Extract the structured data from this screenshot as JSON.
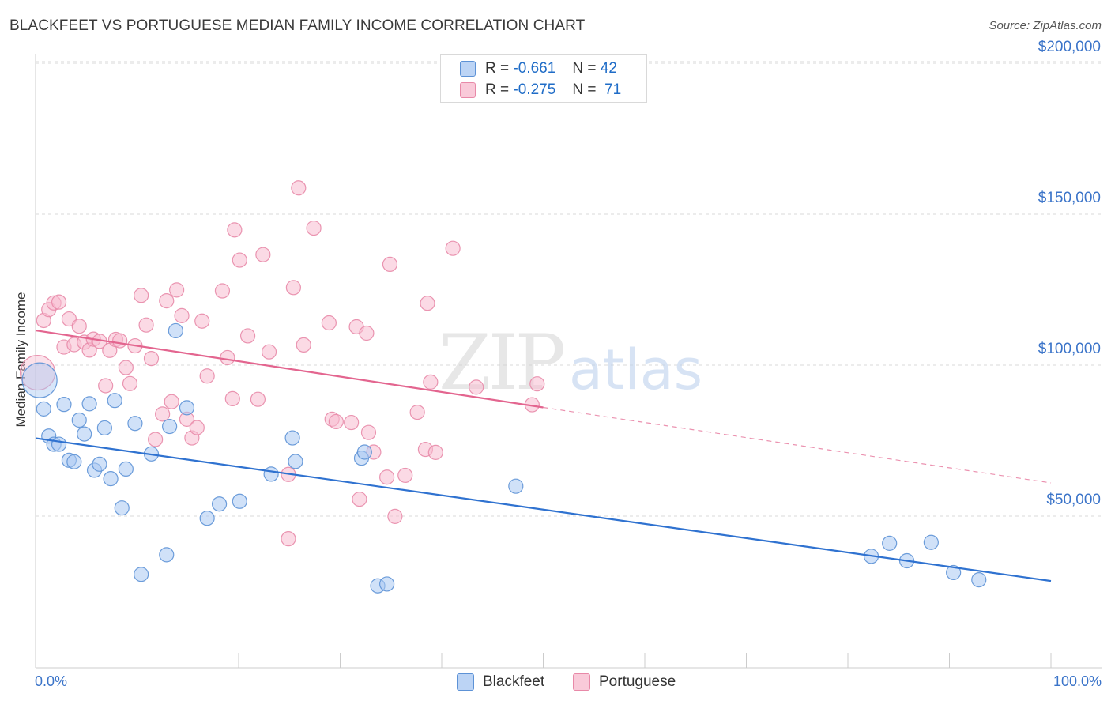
{
  "header": {
    "title": "BLACKFEET VS PORTUGUESE MEDIAN FAMILY INCOME CORRELATION CHART",
    "source": "Source: ZipAtlas.com"
  },
  "watermark": {
    "zip": "ZIP",
    "atlas": "atlas"
  },
  "legend_top": {
    "rows": [
      {
        "r_label": "R =",
        "r_value": "-0.661",
        "n_label": "N =",
        "n_value": "42"
      },
      {
        "r_label": "R =",
        "r_value": "-0.275",
        "n_label": "N =",
        "n_value": "71"
      }
    ]
  },
  "legend_bottom": {
    "items": [
      "Blackfeet",
      "Portuguese"
    ]
  },
  "colors": {
    "blackfeet_fill": "#a9c8f2",
    "blackfeet_stroke": "#5d92d6",
    "blackfeet_line": "#2f72d0",
    "portuguese_fill": "#f7bcd0",
    "portuguese_stroke": "#e889a8",
    "portuguese_line": "#e3658f",
    "grid": "#d9d9d9",
    "tick_label": "#3b74c9"
  },
  "chart_data": {
    "type": "scatter",
    "title": "BLACKFEET VS PORTUGUESE MEDIAN FAMILY INCOME CORRELATION CHART",
    "xlabel": "",
    "ylabel": "Median Family Income",
    "xlim": [
      0,
      100
    ],
    "ylim": [
      0,
      210000
    ],
    "x_tick_labels": [
      "0.0%",
      "100.0%"
    ],
    "y_ticks": [
      50000,
      100000,
      150000,
      200000
    ],
    "y_tick_labels": [
      "$50,000",
      "$100,000",
      "$150,000",
      "$200,000"
    ],
    "grid": true,
    "legend_position": "top-center",
    "series": [
      {
        "name": "Blackfeet",
        "r": -0.661,
        "n": 42,
        "trend": {
          "x": [
            0,
            100
          ],
          "y": [
            75800,
            28500
          ]
        },
        "points": [
          {
            "x": 0.4,
            "y": 95000,
            "big": true
          },
          {
            "x": 0.8,
            "y": 85500
          },
          {
            "x": 1.3,
            "y": 76500
          },
          {
            "x": 1.8,
            "y": 73800
          },
          {
            "x": 2.3,
            "y": 73800
          },
          {
            "x": 2.8,
            "y": 87000
          },
          {
            "x": 3.3,
            "y": 68500
          },
          {
            "x": 3.8,
            "y": 68000
          },
          {
            "x": 4.3,
            "y": 81800
          },
          {
            "x": 4.8,
            "y": 77200
          },
          {
            "x": 5.3,
            "y": 87200
          },
          {
            "x": 5.8,
            "y": 65200
          },
          {
            "x": 6.3,
            "y": 67200
          },
          {
            "x": 6.8,
            "y": 79200
          },
          {
            "x": 7.4,
            "y": 62400
          },
          {
            "x": 7.8,
            "y": 88300
          },
          {
            "x": 8.5,
            "y": 52700
          },
          {
            "x": 8.9,
            "y": 65600
          },
          {
            "x": 9.8,
            "y": 80700
          },
          {
            "x": 10.4,
            "y": 30700
          },
          {
            "x": 11.4,
            "y": 70600
          },
          {
            "x": 12.9,
            "y": 37200
          },
          {
            "x": 13.2,
            "y": 79700
          },
          {
            "x": 13.8,
            "y": 111400
          },
          {
            "x": 14.9,
            "y": 85900
          },
          {
            "x": 16.9,
            "y": 49300
          },
          {
            "x": 18.1,
            "y": 54000
          },
          {
            "x": 20.1,
            "y": 54900
          },
          {
            "x": 23.2,
            "y": 63900
          },
          {
            "x": 25.3,
            "y": 75900
          },
          {
            "x": 25.6,
            "y": 68100
          },
          {
            "x": 32.1,
            "y": 69200
          },
          {
            "x": 32.4,
            "y": 71200
          },
          {
            "x": 33.7,
            "y": 26900
          },
          {
            "x": 34.6,
            "y": 27500
          },
          {
            "x": 47.3,
            "y": 59900
          },
          {
            "x": 82.3,
            "y": 36700
          },
          {
            "x": 84.1,
            "y": 41000
          },
          {
            "x": 85.8,
            "y": 35200
          },
          {
            "x": 88.2,
            "y": 41300
          },
          {
            "x": 90.4,
            "y": 31300
          },
          {
            "x": 92.9,
            "y": 28900
          }
        ]
      },
      {
        "name": "Portuguese",
        "r": -0.275,
        "n": 71,
        "trend": {
          "x": [
            0,
            50
          ],
          "y": [
            111500,
            86000
          ]
        },
        "trend_extension": {
          "x": [
            50,
            100
          ],
          "y": [
            86000,
            61000
          ]
        },
        "points": [
          {
            "x": 0.2,
            "y": 97500,
            "big": true
          },
          {
            "x": 0.8,
            "y": 114800
          },
          {
            "x": 1.3,
            "y": 118400
          },
          {
            "x": 1.8,
            "y": 120600
          },
          {
            "x": 2.3,
            "y": 120900
          },
          {
            "x": 2.8,
            "y": 106000
          },
          {
            "x": 3.3,
            "y": 115300
          },
          {
            "x": 3.8,
            "y": 106800
          },
          {
            "x": 4.3,
            "y": 112900
          },
          {
            "x": 4.8,
            "y": 107600
          },
          {
            "x": 5.3,
            "y": 105000
          },
          {
            "x": 5.7,
            "y": 108600
          },
          {
            "x": 6.3,
            "y": 107900
          },
          {
            "x": 6.9,
            "y": 93200
          },
          {
            "x": 7.3,
            "y": 104900
          },
          {
            "x": 7.9,
            "y": 108500
          },
          {
            "x": 8.3,
            "y": 108100
          },
          {
            "x": 8.9,
            "y": 99200
          },
          {
            "x": 9.3,
            "y": 93900
          },
          {
            "x": 9.8,
            "y": 106400
          },
          {
            "x": 10.4,
            "y": 123100
          },
          {
            "x": 10.9,
            "y": 113300
          },
          {
            "x": 11.4,
            "y": 102200
          },
          {
            "x": 11.8,
            "y": 75400
          },
          {
            "x": 12.5,
            "y": 83800
          },
          {
            "x": 12.9,
            "y": 121300
          },
          {
            "x": 13.4,
            "y": 87900
          },
          {
            "x": 13.9,
            "y": 124900
          },
          {
            "x": 14.4,
            "y": 116400
          },
          {
            "x": 14.9,
            "y": 82100
          },
          {
            "x": 15.4,
            "y": 75900
          },
          {
            "x": 15.9,
            "y": 79300
          },
          {
            "x": 16.4,
            "y": 114600
          },
          {
            "x": 16.9,
            "y": 96400
          },
          {
            "x": 18.4,
            "y": 124600
          },
          {
            "x": 18.9,
            "y": 102500
          },
          {
            "x": 19.4,
            "y": 88900
          },
          {
            "x": 19.6,
            "y": 144800
          },
          {
            "x": 20.1,
            "y": 134800
          },
          {
            "x": 20.9,
            "y": 109700
          },
          {
            "x": 21.9,
            "y": 88700
          },
          {
            "x": 22.4,
            "y": 136600
          },
          {
            "x": 23.0,
            "y": 104400
          },
          {
            "x": 24.9,
            "y": 63800
          },
          {
            "x": 24.9,
            "y": 42500
          },
          {
            "x": 25.4,
            "y": 125700
          },
          {
            "x": 25.9,
            "y": 158700
          },
          {
            "x": 26.4,
            "y": 106700
          },
          {
            "x": 27.4,
            "y": 145400
          },
          {
            "x": 28.9,
            "y": 114000
          },
          {
            "x": 29.2,
            "y": 82100
          },
          {
            "x": 29.6,
            "y": 81300
          },
          {
            "x": 31.1,
            "y": 81000
          },
          {
            "x": 31.6,
            "y": 112700
          },
          {
            "x": 31.9,
            "y": 55600
          },
          {
            "x": 32.6,
            "y": 110600
          },
          {
            "x": 32.8,
            "y": 77700
          },
          {
            "x": 33.3,
            "y": 71200
          },
          {
            "x": 34.6,
            "y": 62900
          },
          {
            "x": 34.9,
            "y": 133400
          },
          {
            "x": 35.4,
            "y": 49900
          },
          {
            "x": 36.4,
            "y": 63500
          },
          {
            "x": 37.6,
            "y": 84400
          },
          {
            "x": 38.4,
            "y": 72100
          },
          {
            "x": 38.6,
            "y": 120500
          },
          {
            "x": 38.9,
            "y": 94400
          },
          {
            "x": 39.4,
            "y": 71100
          },
          {
            "x": 41.1,
            "y": 138700
          },
          {
            "x": 43.4,
            "y": 92700
          },
          {
            "x": 48.9,
            "y": 86900
          },
          {
            "x": 49.4,
            "y": 93800
          }
        ]
      }
    ]
  }
}
